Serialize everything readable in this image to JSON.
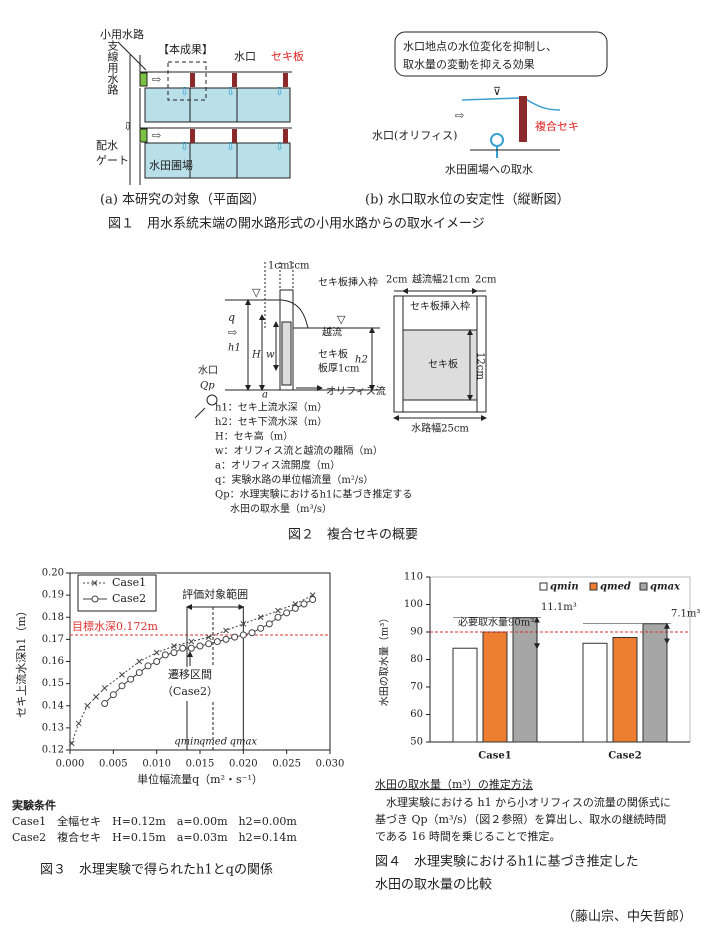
{
  "figure1": {
    "caption": "図１　用水系統末端の開水路形式の小用水路からの取水イメージ",
    "panel_a": {
      "caption": "(a)  本研究の対象（平面図）",
      "small_canal": "小用水路",
      "this_result": "【本成果】",
      "inlet": "水口",
      "weir_plate": "セキ板",
      "branch_canal": "支線用水路",
      "gate": [
        "配水",
        "ゲート"
      ],
      "paddy": "水田圃場"
    },
    "panel_b": {
      "caption": "(b)  水口取水位の安定性（縦断図）",
      "effect": [
        "水口地点の水位変化を抑制し、",
        "取水量の変動を抑える効果"
      ],
      "orifice": "水口(オリフィス)",
      "composite_weir": "複合セキ",
      "intake": "水田圃場への取水"
    }
  },
  "figure2": {
    "caption": "図２　複合セキの概要",
    "side": [
      "1cm",
      "1cm",
      "セキ板挿入枠",
      "q",
      "h1",
      "H",
      "w",
      "水口",
      "Qp",
      "越流",
      "セキ板",
      "板厚1cm",
      "h2",
      "a",
      "オリフィス流"
    ],
    "front": [
      "2cm",
      "越流幅21cm",
      "2cm",
      "セキ板挿入枠",
      "セキ板",
      "12cm",
      "水路幅25cm"
    ],
    "legend": [
      "h1：セキ上流水深（m）",
      "h2：セキ下流水深（m）",
      "H：セキ高（m）",
      "w：オリフィス流と越流の離隔（m）",
      "a：オリフィス流開度（m）",
      "q：実験水路の単位幅流量（m²/s）",
      "Qp：水理実験におけるh1に基づき推定する",
      "水田の取水量（m³/s）"
    ]
  },
  "figure3": {
    "caption": "図３　水理実験で得られたh1とqの関係",
    "chart": {
      "type": "line",
      "xlabel": "単位幅流量q（m²・s⁻¹）",
      "ylabel": "セキ上流水深h1（m）",
      "xlim": [
        0,
        0.03
      ],
      "ylim": [
        0.12,
        0.2
      ],
      "xticks": [
        {
          "value": 0,
          "label": "0.000"
        },
        0.005,
        {
          "value": 0.01,
          "label": "0.010"
        },
        0.015,
        {
          "value": 0.02,
          "label": "0.020"
        },
        0.025,
        {
          "value": 0.03,
          "label": "0.030"
        }
      ],
      "yticks": [
        0.12,
        0.13,
        0.14,
        0.15,
        0.16,
        0.17,
        0.18,
        0.19,
        {
          "value": 0.2,
          "label": "0.20"
        }
      ],
      "legend": "upper left",
      "series": [
        {
          "name": "Case1",
          "color": "#444",
          "marker": "x",
          "linestyle": "dotted",
          "x": [
            0.0002,
            0.001,
            0.002,
            0.003,
            0.004,
            0.006,
            0.008,
            0.01,
            0.012,
            0.014,
            0.016,
            0.018,
            0.02,
            0.022,
            0.024,
            0.026,
            0.028
          ],
          "values": [
            0.123,
            0.132,
            0.14,
            0.144,
            0.148,
            0.154,
            0.16,
            0.164,
            0.167,
            0.169,
            0.171,
            0.174,
            0.177,
            0.18,
            0.183,
            0.186,
            0.19
          ]
        },
        {
          "name": "Case2",
          "color": "#444",
          "marker": "o",
          "linestyle": "solid",
          "x": [
            0.004,
            0.005,
            0.006,
            0.007,
            0.008,
            0.009,
            0.01,
            0.011,
            0.012,
            0.013,
            0.014,
            0.015,
            0.016,
            0.017,
            0.018,
            0.019,
            0.02,
            0.021,
            0.022,
            0.023,
            0.024,
            0.025,
            0.026,
            0.027,
            0.028
          ],
          "values": [
            0.141,
            0.145,
            0.149,
            0.152,
            0.155,
            0.158,
            0.16,
            0.163,
            0.164,
            0.166,
            0.166,
            0.167,
            0.168,
            0.169,
            0.17,
            0.171,
            0.172,
            0.173,
            0.175,
            0.177,
            0.18,
            0.182,
            0.184,
            0.186,
            0.188
          ]
        }
      ],
      "reference": {
        "value": 0.172,
        "label": "目標水深0.172m",
        "color": "#e03030"
      },
      "vlines": [
        {
          "value": 0.0135,
          "label": "qmin"
        },
        {
          "value": 0.0165,
          "label": "qmed"
        },
        {
          "value": 0.02,
          "label": "qmax"
        }
      ],
      "range_label": "評価対象範囲",
      "transition_label": [
        "遷移区間",
        "（Case2）"
      ]
    },
    "conditions": {
      "title": "実験条件",
      "rows": [
        "Case1　全幅セキ　H=0.12m　a=0.00m　h2=0.00m",
        "Case2　複合セキ　H=0.15m　a=0.03m　h2=0.14m"
      ]
    }
  },
  "figure4": {
    "caption": [
      "図４　水理実験におけるh1に基づき推定した",
      "水田の取水量の比較"
    ],
    "chart": {
      "type": "bar",
      "ylabel": "水田の取水量（m³）",
      "categories": [
        "Case1",
        "Case2"
      ],
      "ylim": [
        50,
        110
      ],
      "yticks": [
        50,
        60,
        70,
        80,
        90,
        100,
        110
      ],
      "legend": "upper right",
      "series": [
        {
          "name": "qmin",
          "color": "#ffffff",
          "values": [
            84.1,
            85.9
          ]
        },
        {
          "name": "qmed",
          "color": "#ed7d31",
          "values": [
            90,
            88
          ]
        },
        {
          "name": "qmax",
          "color": "#a6a6a6",
          "values": [
            95.2,
            93
          ]
        }
      ],
      "reference": {
        "value": 90,
        "label": "必要取水量90m³",
        "color": "#e03030"
      },
      "annotations": [
        "11.1m³",
        "7.1m³"
      ]
    },
    "method": {
      "title": "水田の取水量（m³）の推定方法",
      "lines": [
        "　水理実験における h1 から小オリフィスの流量の関係式に",
        "基づき Qp（m³/s）（図２参照）を算出し、取水の継続時間",
        "である 16 時間を乗じることで推定。"
      ]
    }
  },
  "author": "（藤山宗、中矢哲郎）"
}
